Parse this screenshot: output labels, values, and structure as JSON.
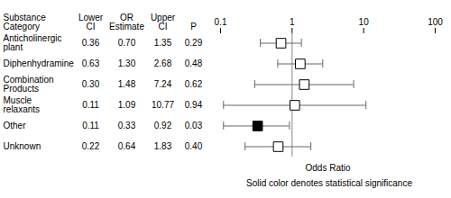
{
  "chart_data": {
    "type": "forest",
    "columns": [
      "Substance Category",
      "Lower CI",
      "OR Estimate",
      "Upper CI",
      "P"
    ],
    "categories": [
      "Anticholinergic plant",
      "Diphenhydramine",
      "Combination Products",
      "Muscle relaxants",
      "Other",
      "Unknown"
    ],
    "lower": [
      0.36,
      0.63,
      0.3,
      0.11,
      0.11,
      0.22
    ],
    "values": [
      0.7,
      1.3,
      1.48,
      1.09,
      0.33,
      0.64
    ],
    "upper": [
      1.35,
      2.68,
      7.24,
      10.77,
      0.92,
      1.83
    ],
    "p": [
      0.29,
      0.48,
      0.62,
      0.94,
      0.03,
      0.4
    ],
    "significant": [
      false,
      false,
      false,
      false,
      true,
      false
    ],
    "reference": 1,
    "log": "x",
    "xlim": [
      0.1,
      100
    ],
    "xticks": [
      0.1,
      1,
      10,
      100
    ],
    "xlabel": "Odds Ratio",
    "caption": "Solid color denotes statistical significance",
    "color": "#000000"
  }
}
